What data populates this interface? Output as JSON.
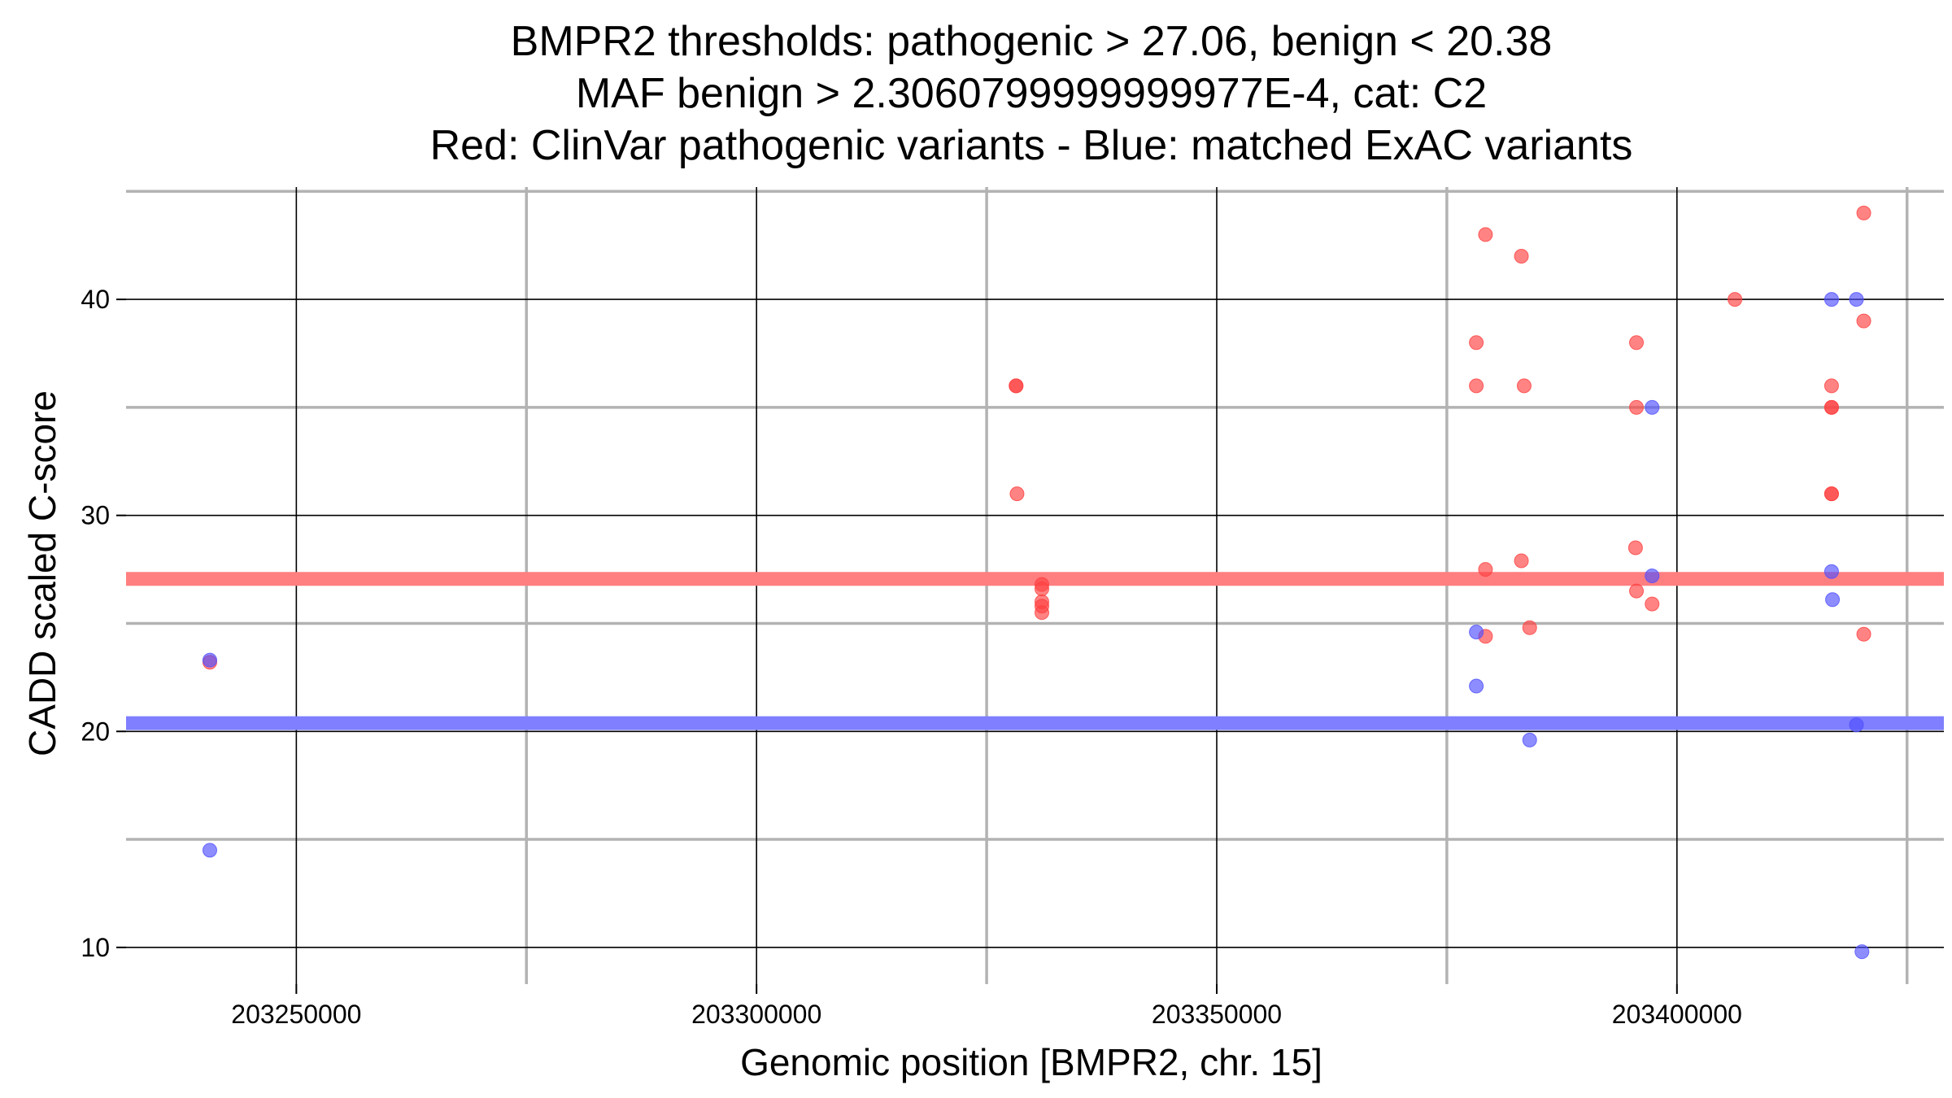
{
  "chart_data": {
    "type": "scatter",
    "title_lines": [
      "BMPR2 thresholds: pathogenic > 27.06, benign < 20.38",
      "MAF benign > 2.3060799999999977E-4, cat: C2",
      "Red: ClinVar pathogenic variants - Blue: matched ExAC variants"
    ],
    "xlabel": "Genomic position [BMPR2, chr. 15]",
    "ylabel": "CADD scaled C-score",
    "xlim": [
      203231500,
      203429000
    ],
    "ylim": [
      8.3,
      45.2
    ],
    "x_ticks": [
      203250000,
      203300000,
      203350000,
      203400000
    ],
    "x_tick_labels": [
      "203250000",
      "203300000",
      "203350000",
      "203400000"
    ],
    "x_minor_grid": [
      203275000,
      203325000,
      203375000,
      203425000
    ],
    "y_ticks": [
      10,
      20,
      30,
      40
    ],
    "y_tick_labels": [
      "10",
      "20",
      "30",
      "40"
    ],
    "y_minor_grid": [
      15,
      25,
      35,
      45
    ],
    "thresholds": [
      {
        "name": "pathogenic",
        "value": 27.06,
        "color": "#ff7f80"
      },
      {
        "name": "benign",
        "value": 20.38,
        "color": "#7f7fff"
      }
    ],
    "series": [
      {
        "name": "ClinVar pathogenic variants",
        "color": "#ff4040",
        "points": [
          [
            203240600,
            23.2
          ],
          [
            203328200,
            36.0
          ],
          [
            203328200,
            36.0
          ],
          [
            203328300,
            31.0
          ],
          [
            203331000,
            26.8
          ],
          [
            203331000,
            26.6
          ],
          [
            203331000,
            26.0
          ],
          [
            203331000,
            25.8
          ],
          [
            203331000,
            25.5
          ],
          [
            203378200,
            38.0
          ],
          [
            203378200,
            36.0
          ],
          [
            203379200,
            43.0
          ],
          [
            203379200,
            27.5
          ],
          [
            203379200,
            24.4
          ],
          [
            203383100,
            42.0
          ],
          [
            203383100,
            27.9
          ],
          [
            203383400,
            36.0
          ],
          [
            203384000,
            24.8
          ],
          [
            203395600,
            38.0
          ],
          [
            203395600,
            35.0
          ],
          [
            203395500,
            28.5
          ],
          [
            203395600,
            26.5
          ],
          [
            203397300,
            25.9
          ],
          [
            203406300,
            40.0
          ],
          [
            203416800,
            36.0
          ],
          [
            203416800,
            35.0
          ],
          [
            203416800,
            35.0
          ],
          [
            203416800,
            31.0
          ],
          [
            203416800,
            31.0
          ],
          [
            203420300,
            44.0
          ],
          [
            203420300,
            39.0
          ],
          [
            203420300,
            24.5
          ]
        ]
      },
      {
        "name": "matched ExAC variants",
        "color": "#5050ff",
        "points": [
          [
            203240600,
            23.3
          ],
          [
            203240600,
            14.5
          ],
          [
            203378200,
            24.6
          ],
          [
            203378200,
            22.1
          ],
          [
            203384000,
            19.6
          ],
          [
            203397300,
            35.0
          ],
          [
            203397300,
            27.2
          ],
          [
            203416800,
            40.0
          ],
          [
            203416800,
            27.4
          ],
          [
            203416900,
            26.1
          ],
          [
            203419500,
            40.0
          ],
          [
            203419500,
            20.3
          ],
          [
            203420100,
            9.8
          ]
        ]
      }
    ]
  }
}
